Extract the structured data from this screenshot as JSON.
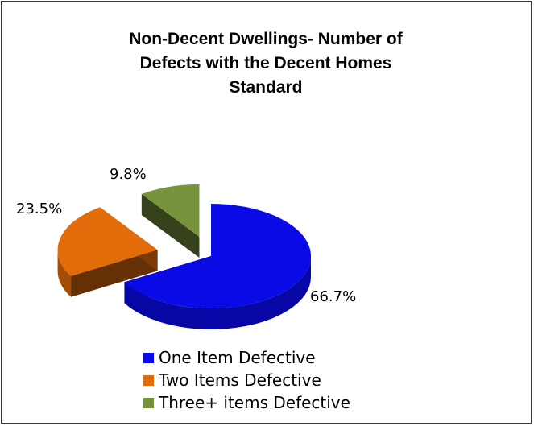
{
  "chart_data": {
    "type": "pie",
    "title_lines": [
      "Non-Decent Dwellings- Number of",
      "Defects with the Decent Homes",
      "Standard"
    ],
    "categories": [
      "One Item Defective",
      "Two Items Defective",
      "Three+ items Defective"
    ],
    "values": [
      66.7,
      23.5,
      9.8
    ],
    "labels": [
      "66.7%",
      "23.5%",
      "9.8%"
    ],
    "colors": [
      "#0a0ae6",
      "#e26b0a",
      "#77933c"
    ],
    "style": "3d-exploded",
    "legend_position": "bottom"
  }
}
